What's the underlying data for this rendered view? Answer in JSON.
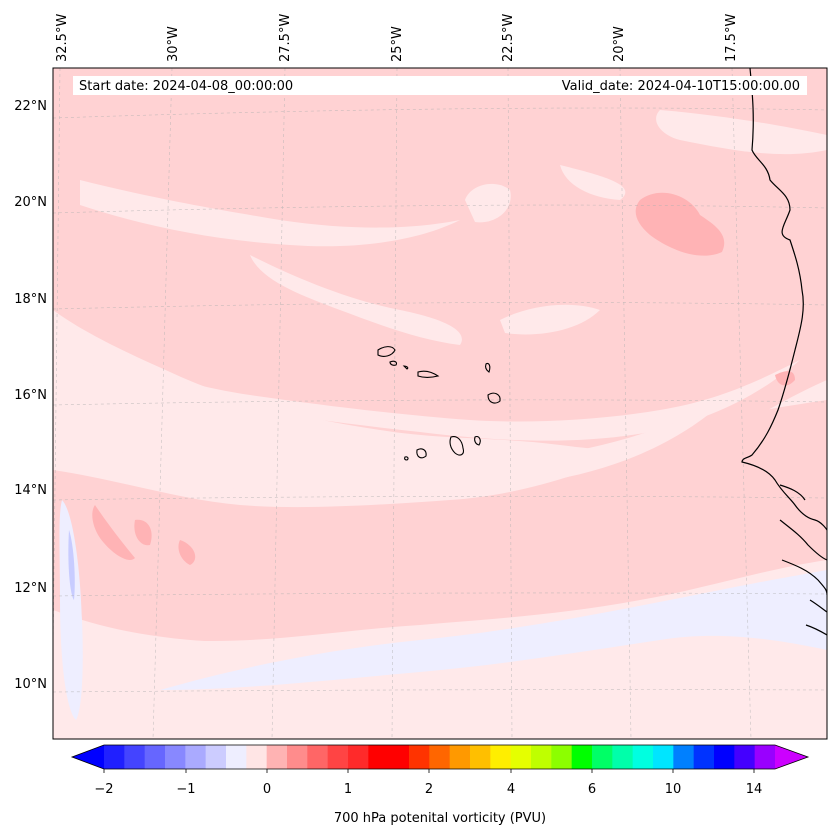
{
  "header": {
    "start_date": "Start date: 2024-04-08_00:00:00",
    "valid_date": "Valid_date: 2024-04-10T15:00:00.00"
  },
  "map": {
    "lon_labels": [
      "32.5°W",
      "30°W",
      "27.5°W",
      "25°W",
      "22.5°W",
      "20°W",
      "17.5°W"
    ],
    "lat_labels": [
      "22°N",
      "20°N",
      "18°N",
      "16°N",
      "14°N",
      "12°N",
      "10°N"
    ],
    "colors": {
      "background": "#ffe9ea",
      "band": "#ffd2d3",
      "core": "#ffb3b5",
      "negative": "#eeeeff",
      "negative_strong": "#c8ccff",
      "coast": "#000000",
      "grid": "#b0b0b0"
    }
  },
  "colorbar": {
    "title": "700 hPa potenital vorticity (PVU)",
    "tick_labels": [
      "−2",
      "−1",
      "0",
      "1",
      "2",
      "4",
      "6",
      "10",
      "14"
    ],
    "colors": [
      "#0000ff",
      "#2020ff",
      "#4444ff",
      "#6666ff",
      "#8888ff",
      "#aaaaff",
      "#ccccff",
      "#eeeeff",
      "#ffe5e5",
      "#ffb3b3",
      "#ff8c8c",
      "#ff6666",
      "#ff4444",
      "#ff2a2a",
      "#ff0000",
      "#ff0000",
      "#ff3300",
      "#ff6600",
      "#ff9900",
      "#ffbf00",
      "#ffee00",
      "#e5ff00",
      "#bfff00",
      "#8cff00",
      "#00ff00",
      "#00ff66",
      "#00ffaa",
      "#00ffe0",
      "#00e5ff",
      "#0080ff",
      "#0033ff",
      "#0000ff",
      "#4400ff",
      "#9900ff",
      "#cc00ff"
    ]
  }
}
